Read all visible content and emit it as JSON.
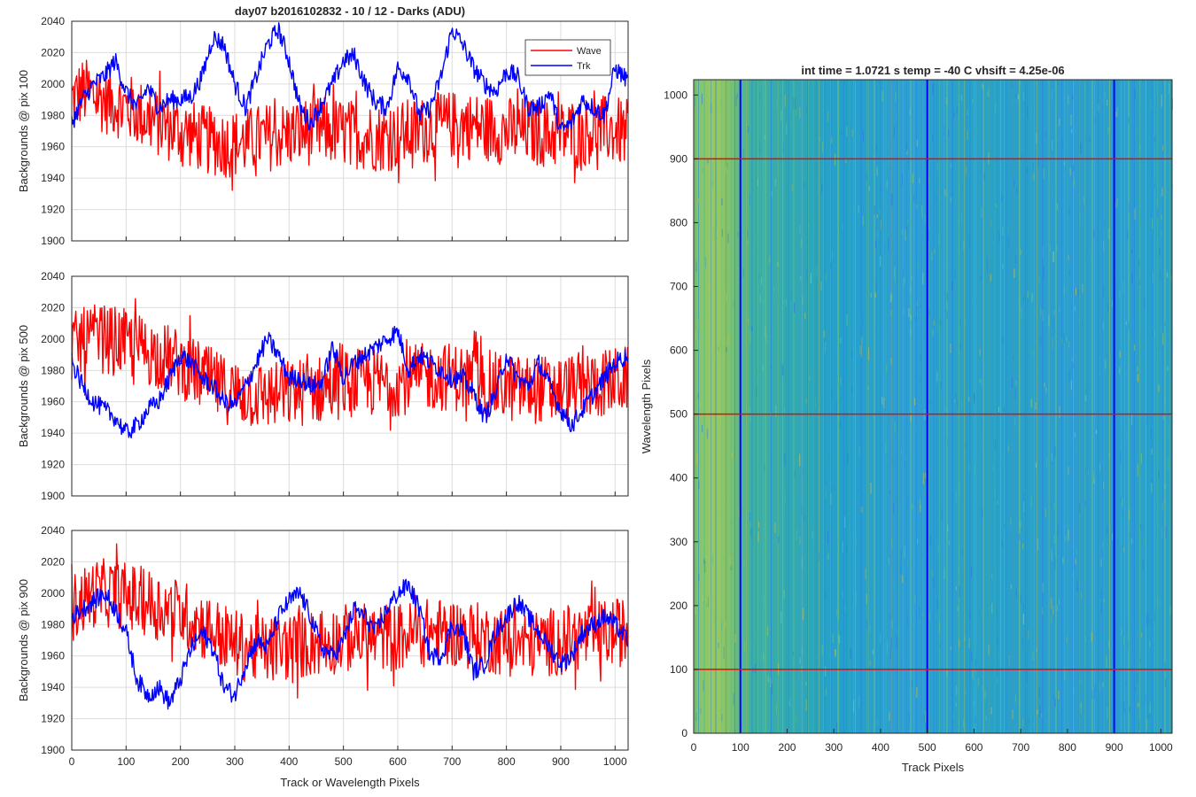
{
  "figure": {
    "title": "day07 b2016102832 - 10 / 12 - Darks (ADU)",
    "xlabel": "Track or Wavelength Pixels"
  },
  "colors": {
    "wave": "#ff0000",
    "trk": "#0000ff"
  },
  "chart_data": [
    {
      "type": "line",
      "ylabel": "Backgrounds @ pix 100",
      "xlim": [
        0,
        1024
      ],
      "ylim": [
        1900,
        2040
      ],
      "xticks": [
        0,
        100,
        200,
        300,
        400,
        500,
        600,
        700,
        800,
        900,
        1000
      ],
      "yticks": [
        1900,
        1920,
        1940,
        1960,
        1980,
        2000,
        2020,
        2040
      ],
      "grid": true,
      "legend": {
        "placement": "top-right",
        "entries": [
          "Wave",
          "Trk"
        ]
      },
      "series": [
        {
          "name": "Wave",
          "color": "#ff0000",
          "x": [
            0,
            20,
            40,
            60,
            80,
            100,
            120,
            140,
            160,
            180,
            200,
            220,
            240,
            260,
            280,
            300,
            320,
            340,
            360,
            380,
            400,
            420,
            440,
            460,
            480,
            500,
            520,
            540,
            560,
            580,
            600,
            620,
            640,
            660,
            680,
            700,
            720,
            740,
            760,
            780,
            800,
            820,
            840,
            860,
            880,
            900,
            920,
            940,
            960,
            980,
            1000,
            1024
          ],
          "y": [
            1990,
            1995,
            1993,
            1990,
            1988,
            1985,
            1982,
            1978,
            1975,
            1972,
            1970,
            1968,
            1965,
            1963,
            1962,
            1962,
            1963,
            1965,
            1966,
            1967,
            1968,
            1969,
            1970,
            1970,
            1970,
            1969,
            1968,
            1967,
            1966,
            1966,
            1967,
            1969,
            1970,
            1972,
            1973,
            1974,
            1974,
            1973,
            1972,
            1971,
            1970,
            1970,
            1970,
            1969,
            1968,
            1968,
            1969,
            1970,
            1971,
            1971,
            1970,
            1968
          ]
        },
        {
          "name": "Trk",
          "color": "#0000ff",
          "x": [
            0,
            20,
            40,
            60,
            80,
            100,
            120,
            140,
            160,
            180,
            200,
            220,
            240,
            260,
            280,
            300,
            320,
            340,
            360,
            380,
            400,
            420,
            440,
            460,
            480,
            500,
            520,
            540,
            560,
            580,
            600,
            620,
            640,
            660,
            680,
            700,
            720,
            740,
            760,
            780,
            800,
            820,
            840,
            860,
            880,
            900,
            920,
            940,
            960,
            980,
            1000,
            1024
          ],
          "y": [
            1975,
            1990,
            2000,
            2005,
            2015,
            1995,
            1985,
            1998,
            1985,
            1990,
            1990,
            1992,
            2005,
            2030,
            2025,
            2000,
            1985,
            2005,
            2025,
            2035,
            2015,
            1985,
            1975,
            1988,
            2000,
            2015,
            2018,
            2000,
            1988,
            1985,
            2010,
            2005,
            1980,
            1985,
            2005,
            2035,
            2025,
            2010,
            2000,
            1995,
            2008,
            2005,
            1985,
            1985,
            1995,
            1970,
            1975,
            1990,
            1985,
            1980,
            2010,
            2002
          ]
        }
      ]
    },
    {
      "type": "line",
      "ylabel": "Backgrounds @ pix 500",
      "xlim": [
        0,
        1024
      ],
      "ylim": [
        1900,
        2040
      ],
      "xticks": [
        0,
        100,
        200,
        300,
        400,
        500,
        600,
        700,
        800,
        900,
        1000
      ],
      "yticks": [
        1900,
        1920,
        1940,
        1960,
        1980,
        2000,
        2020,
        2040
      ],
      "grid": true,
      "series": [
        {
          "name": "Wave",
          "color": "#ff0000",
          "x": [
            0,
            20,
            40,
            60,
            80,
            100,
            120,
            140,
            160,
            180,
            200,
            220,
            240,
            260,
            280,
            300,
            320,
            340,
            360,
            380,
            400,
            420,
            440,
            460,
            480,
            500,
            520,
            540,
            560,
            580,
            600,
            620,
            640,
            660,
            680,
            700,
            720,
            740,
            760,
            780,
            800,
            820,
            840,
            860,
            880,
            900,
            920,
            940,
            960,
            980,
            1000,
            1024
          ],
          "y": [
            1995,
            1998,
            2000,
            2000,
            1999,
            1997,
            1995,
            1992,
            1990,
            1987,
            1984,
            1980,
            1976,
            1972,
            1968,
            1966,
            1965,
            1964,
            1964,
            1964,
            1965,
            1966,
            1967,
            1968,
            1970,
            1971,
            1972,
            1972,
            1972,
            1972,
            1973,
            1974,
            1975,
            1976,
            1976,
            1976,
            1975,
            1974,
            1972,
            1970,
            1969,
            1968,
            1968,
            1968,
            1968,
            1968,
            1969,
            1970,
            1971,
            1972,
            1973,
            1974
          ]
        },
        {
          "name": "Trk",
          "color": "#0000ff",
          "x": [
            0,
            20,
            40,
            60,
            80,
            100,
            120,
            140,
            160,
            180,
            200,
            220,
            240,
            260,
            280,
            300,
            320,
            340,
            360,
            380,
            400,
            420,
            440,
            460,
            480,
            500,
            520,
            540,
            560,
            580,
            600,
            620,
            640,
            660,
            680,
            700,
            720,
            740,
            760,
            780,
            800,
            820,
            840,
            860,
            880,
            900,
            920,
            940,
            960,
            980,
            1000,
            1024
          ],
          "y": [
            1985,
            1970,
            1960,
            1955,
            1950,
            1940,
            1945,
            1955,
            1960,
            1975,
            1990,
            1985,
            1975,
            1970,
            1960,
            1958,
            1970,
            1985,
            2000,
            1990,
            1975,
            1975,
            1970,
            1972,
            1995,
            1975,
            1985,
            1990,
            1995,
            2000,
            2005,
            1980,
            1990,
            1985,
            1980,
            1975,
            1975,
            1965,
            1950,
            1965,
            1990,
            1975,
            1970,
            1985,
            1970,
            1955,
            1945,
            1955,
            1965,
            1975,
            1985,
            1990
          ]
        }
      ]
    },
    {
      "type": "line",
      "ylabel": "Backgrounds @ pix 900",
      "xlabel": "Track or Wavelength Pixels",
      "xlim": [
        0,
        1024
      ],
      "ylim": [
        1900,
        2040
      ],
      "xticks": [
        0,
        100,
        200,
        300,
        400,
        500,
        600,
        700,
        800,
        900,
        1000
      ],
      "yticks": [
        1900,
        1920,
        1940,
        1960,
        1980,
        2000,
        2020,
        2040
      ],
      "grid": true,
      "series": [
        {
          "name": "Wave",
          "color": "#ff0000",
          "x": [
            0,
            20,
            40,
            60,
            80,
            100,
            120,
            140,
            160,
            180,
            200,
            220,
            240,
            260,
            280,
            300,
            320,
            340,
            360,
            380,
            400,
            420,
            440,
            460,
            480,
            500,
            520,
            540,
            560,
            580,
            600,
            620,
            640,
            660,
            680,
            700,
            720,
            740,
            760,
            780,
            800,
            820,
            840,
            860,
            880,
            900,
            920,
            940,
            960,
            980,
            1000,
            1024
          ],
          "y": [
            1990,
            1995,
            2000,
            2000,
            2000,
            1998,
            1996,
            1994,
            1992,
            1990,
            1987,
            1984,
            1980,
            1976,
            1972,
            1968,
            1965,
            1964,
            1964,
            1965,
            1966,
            1967,
            1968,
            1969,
            1970,
            1971,
            1972,
            1972,
            1972,
            1972,
            1972,
            1973,
            1974,
            1975,
            1975,
            1975,
            1974,
            1973,
            1971,
            1970,
            1969,
            1968,
            1968,
            1968,
            1969,
            1970,
            1971,
            1972,
            1973,
            1974,
            1975,
            1975
          ]
        },
        {
          "name": "Trk",
          "color": "#0000ff",
          "x": [
            0,
            20,
            40,
            60,
            80,
            100,
            120,
            140,
            160,
            180,
            200,
            220,
            240,
            260,
            280,
            300,
            320,
            340,
            360,
            380,
            400,
            420,
            440,
            460,
            480,
            500,
            520,
            540,
            560,
            580,
            600,
            620,
            640,
            660,
            680,
            700,
            720,
            740,
            760,
            780,
            800,
            820,
            840,
            860,
            880,
            900,
            920,
            940,
            960,
            980,
            1000,
            1024
          ],
          "y": [
            1985,
            1990,
            1995,
            2000,
            1990,
            1975,
            1945,
            1935,
            1940,
            1930,
            1945,
            1965,
            1975,
            1965,
            1940,
            1935,
            1955,
            1970,
            1965,
            1985,
            1995,
            2000,
            1985,
            1965,
            1960,
            1970,
            1990,
            1985,
            1975,
            1990,
            2000,
            2005,
            1990,
            1960,
            1960,
            1980,
            1975,
            1950,
            1955,
            1975,
            1985,
            1995,
            1985,
            1975,
            1965,
            1955,
            1960,
            1975,
            1980,
            1985,
            1980,
            1970
          ]
        }
      ]
    },
    {
      "type": "heatmap",
      "title": "int time = 1.0721 s   temp = -40 C   vhsift = 4.25e-06",
      "xlabel": "Track Pixels",
      "ylabel": "Wavelength Pixels",
      "xlim": [
        0,
        1024
      ],
      "ylim": [
        0,
        1024
      ],
      "xticks": [
        0,
        100,
        200,
        300,
        400,
        500,
        600,
        700,
        800,
        900,
        1000
      ],
      "yticks": [
        0,
        100,
        200,
        300,
        400,
        500,
        600,
        700,
        800,
        900,
        1000
      ],
      "colormap": "parula",
      "marker_lines": {
        "vertical_x": [
          100,
          500,
          900
        ],
        "vertical_color": "#0000ff",
        "horizontal_y": [
          100,
          500,
          900
        ],
        "horizontal_color": "#ff0000"
      }
    }
  ]
}
